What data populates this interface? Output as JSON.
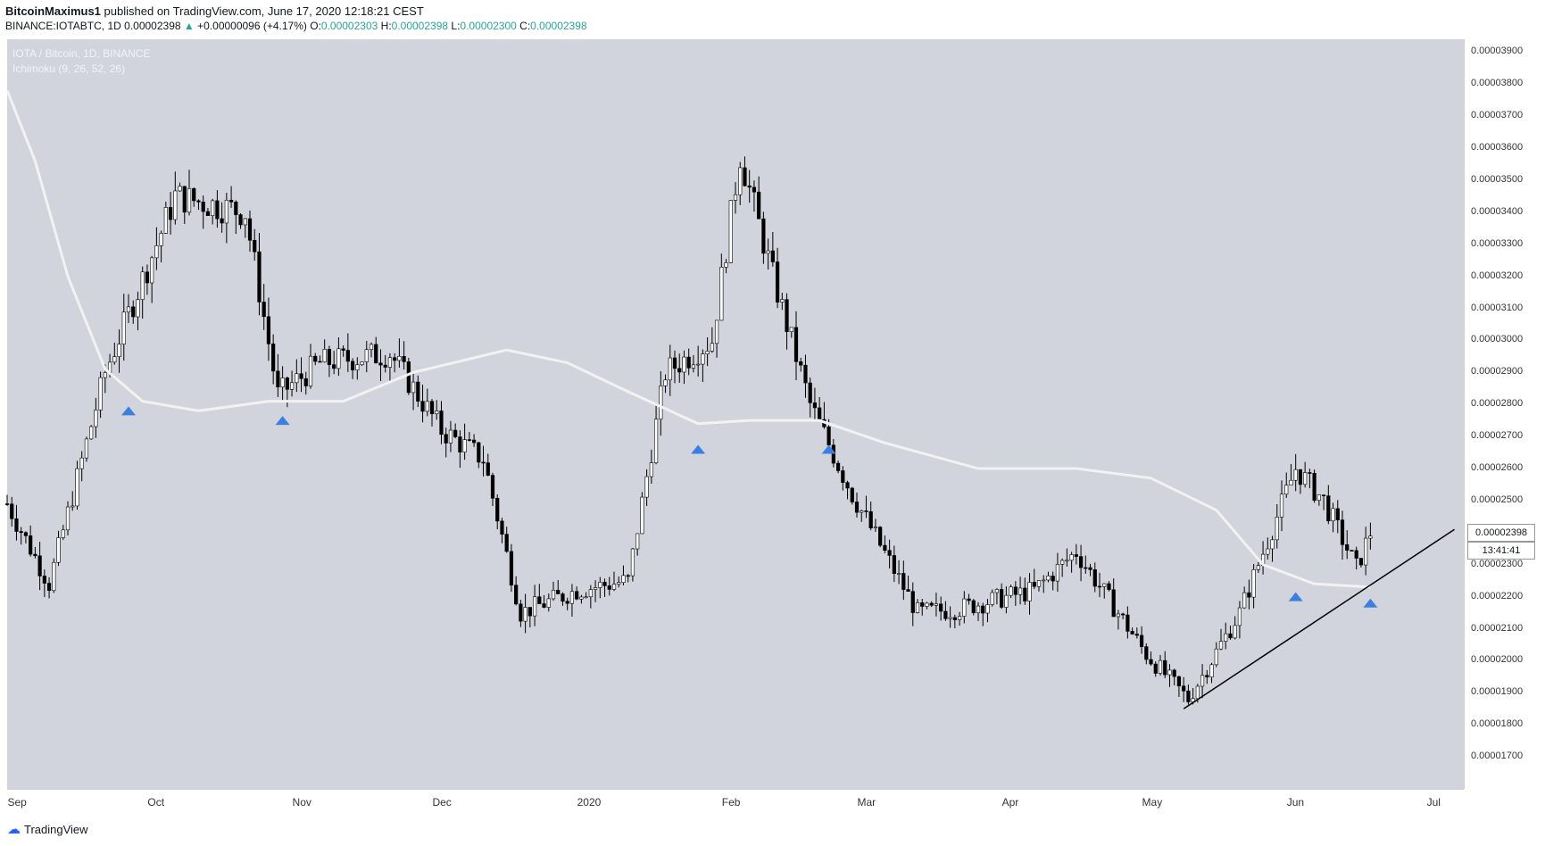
{
  "header": {
    "author": "BitcoinMaximus1",
    "published": "published on TradingView.com, June 17, 2020 12:18:21 CEST",
    "symbol": "BINANCE:IOTABTC, 1D",
    "last": "0.00002398",
    "change": "+0.00000096 (+4.17%)",
    "o_label": "O:",
    "o_value": "0.00002303",
    "h_label": "H:",
    "h_value": "0.00002398",
    "l_label": "L:",
    "l_value": "0.00002300",
    "c_label": "C:",
    "c_value": "0.00002398"
  },
  "pane": {
    "title": "IOTA / Bitcoin, 1D, BINANCE",
    "indicator": "Ichimoku (9, 26, 52, 26)"
  },
  "price_label": {
    "value": "0.00002398",
    "countdown": "13:41:41"
  },
  "footer": {
    "brand": "TradingView"
  },
  "colors": {
    "pane_bg": "#d1d4dc",
    "candle_up": "#ffffff",
    "candle_down": "#000000",
    "baseline": "#f0f0f0",
    "marker": "#3d7fe0",
    "trendline": "#000000"
  },
  "chart_data": {
    "type": "candlestick",
    "title": "IOTA / Bitcoin, 1D, BINANCE",
    "y_ticks": [
      "0.00003900",
      "0.00003800",
      "0.00003700",
      "0.00003600",
      "0.00003500",
      "0.00003400",
      "0.00003300",
      "0.00003200",
      "0.00003100",
      "0.00003000",
      "0.00002900",
      "0.00002800",
      "0.00002700",
      "0.00002600",
      "0.00002500",
      "0.00002400",
      "0.00002300",
      "0.00002200",
      "0.00002100",
      "0.00002000",
      "0.00001900",
      "0.00001800",
      "0.00001700"
    ],
    "x_ticks": [
      "Sep",
      "Oct",
      "Nov",
      "Dec",
      "2020",
      "Jan",
      "Feb",
      "Mar",
      "Apr",
      "May",
      "Jun",
      "Jul"
    ],
    "ylim": [
      1.6e-05,
      3.94e-05
    ],
    "x_range_days": [
      "2019-08-30",
      "2020-07-07"
    ],
    "ohlc_summary": [
      {
        "date": "2019-08-30",
        "close": 2.49e-05
      },
      {
        "date": "2019-09-08",
        "close": 2.24e-05
      },
      {
        "date": "2019-09-20",
        "close": 2.9e-05
      },
      {
        "date": "2019-10-01",
        "close": 3.3e-05
      },
      {
        "date": "2019-10-05",
        "close": 3.45e-05
      },
      {
        "date": "2019-10-20",
        "close": 3.4e-05
      },
      {
        "date": "2019-10-27",
        "close": 2.83e-05
      },
      {
        "date": "2019-11-05",
        "close": 2.93e-05
      },
      {
        "date": "2019-11-20",
        "close": 2.96e-05
      },
      {
        "date": "2019-12-01",
        "close": 2.72e-05
      },
      {
        "date": "2019-12-10",
        "close": 2.63e-05
      },
      {
        "date": "2019-12-18",
        "close": 2.15e-05
      },
      {
        "date": "2019-12-30",
        "close": 2.22e-05
      },
      {
        "date": "2020-01-10",
        "close": 2.25e-05
      },
      {
        "date": "2020-01-18",
        "close": 2.9e-05
      },
      {
        "date": "2020-01-28",
        "close": 3e-05
      },
      {
        "date": "2020-02-03",
        "close": 3.58e-05
      },
      {
        "date": "2020-02-10",
        "close": 3.2e-05
      },
      {
        "date": "2020-02-18",
        "close": 2.8e-05
      },
      {
        "date": "2020-02-27",
        "close": 2.52e-05
      },
      {
        "date": "2020-03-12",
        "close": 2.15e-05
      },
      {
        "date": "2020-03-20",
        "close": 2.16e-05
      },
      {
        "date": "2020-04-06",
        "close": 2.22e-05
      },
      {
        "date": "2020-04-15",
        "close": 2.34e-05
      },
      {
        "date": "2020-04-30",
        "close": 2.02e-05
      },
      {
        "date": "2020-05-09",
        "close": 1.88e-05
      },
      {
        "date": "2020-05-20",
        "close": 2.15e-05
      },
      {
        "date": "2020-06-01",
        "close": 2.6e-05
      },
      {
        "date": "2020-06-07",
        "close": 2.5e-05
      },
      {
        "date": "2020-06-14",
        "close": 2.29e-05
      },
      {
        "date": "2020-06-17",
        "close": 2.4e-05
      }
    ],
    "baseline_series": [
      {
        "date": "2019-08-30",
        "value": 3.78e-05
      },
      {
        "date": "2019-09-05",
        "value": 3.56e-05
      },
      {
        "date": "2019-09-12",
        "value": 3.2e-05
      },
      {
        "date": "2019-09-20",
        "value": 2.91e-05
      },
      {
        "date": "2019-09-28",
        "value": 2.81e-05
      },
      {
        "date": "2019-10-10",
        "value": 2.78e-05
      },
      {
        "date": "2019-10-25",
        "value": 2.81e-05
      },
      {
        "date": "2019-11-10",
        "value": 2.81e-05
      },
      {
        "date": "2019-11-25",
        "value": 2.9e-05
      },
      {
        "date": "2019-12-15",
        "value": 2.97e-05
      },
      {
        "date": "2019-12-28",
        "value": 2.93e-05
      },
      {
        "date": "2020-01-10",
        "value": 2.84e-05
      },
      {
        "date": "2020-01-25",
        "value": 2.74e-05
      },
      {
        "date": "2020-02-05",
        "value": 2.75e-05
      },
      {
        "date": "2020-02-20",
        "value": 2.75e-05
      },
      {
        "date": "2020-03-05",
        "value": 2.68e-05
      },
      {
        "date": "2020-03-25",
        "value": 2.6e-05
      },
      {
        "date": "2020-04-15",
        "value": 2.6e-05
      },
      {
        "date": "2020-05-01",
        "value": 2.57e-05
      },
      {
        "date": "2020-05-15",
        "value": 2.47e-05
      },
      {
        "date": "2020-05-25",
        "value": 2.3e-05
      },
      {
        "date": "2020-06-05",
        "value": 2.24e-05
      },
      {
        "date": "2020-06-17",
        "value": 2.23e-05
      }
    ],
    "markers": [
      {
        "date": "2019-09-25",
        "value": 2.78e-05
      },
      {
        "date": "2019-10-28",
        "value": 2.75e-05
      },
      {
        "date": "2020-01-25",
        "value": 2.66e-05
      },
      {
        "date": "2020-02-22",
        "value": 2.66e-05
      },
      {
        "date": "2020-06-01",
        "value": 2.2e-05
      },
      {
        "date": "2020-06-17",
        "value": 2.18e-05
      }
    ],
    "trendline": [
      {
        "date": "2020-05-08",
        "value": 1.85e-05
      },
      {
        "date": "2020-07-05",
        "value": 2.41e-05
      }
    ]
  }
}
